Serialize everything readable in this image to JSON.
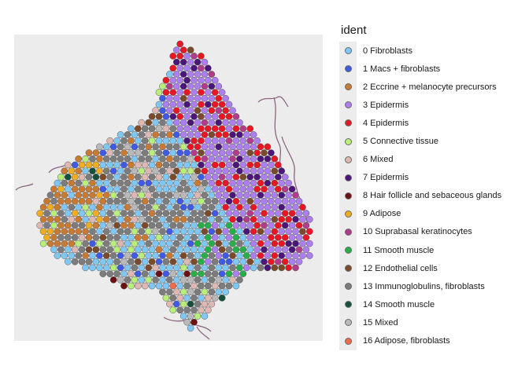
{
  "legend": {
    "title": "ident",
    "items": [
      {
        "label": "0 Fibroblasts",
        "color": "#7fc8f5"
      },
      {
        "label": "1 Macs + fibroblasts",
        "color": "#3f5be6"
      },
      {
        "label": "2 Eccrine + melanocyte precursors",
        "color": "#c97a32"
      },
      {
        "label": "3 Epidermis",
        "color": "#ad7ef0"
      },
      {
        "label": "4 Epidermis",
        "color": "#ea1525"
      },
      {
        "label": "5 Connective tissue",
        "color": "#b8ef7a"
      },
      {
        "label": "6 Mixed",
        "color": "#dfb8b3"
      },
      {
        "label": "7 Epidermis",
        "color": "#4b1579"
      },
      {
        "label": "8 Hair follicle and sebaceous glands",
        "color": "#6e0f14"
      },
      {
        "label": "9 Adipose",
        "color": "#f0ad1e"
      },
      {
        "label": "10 Suprabasal keratinocytes",
        "color": "#b23b8c"
      },
      {
        "label": "11 Smooth muscle",
        "color": "#26b04a"
      },
      {
        "label": "12 Endothelial cells",
        "color": "#7b4a2a"
      },
      {
        "label": "13 Immunoglobulins, fibroblasts",
        "color": "#7c7c7c"
      },
      {
        "label": "14 Smooth muscle",
        "color": "#15503a"
      },
      {
        "label": "15 Mixed",
        "color": "#b9b9b9"
      },
      {
        "label": "16 Adipose, fibroblasts",
        "color": "#f26a4a"
      }
    ]
  }
}
